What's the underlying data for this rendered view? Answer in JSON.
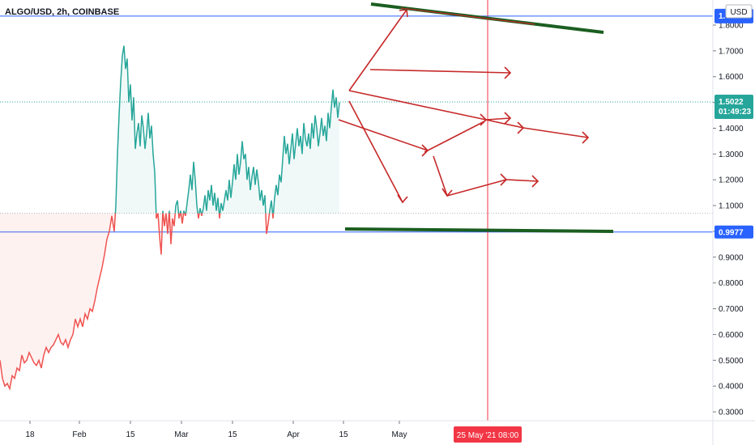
{
  "title": "ALGO/USD, 2h, COINBASE",
  "currency": "USD",
  "chart_data": {
    "type": "line",
    "symbol": "ALGO/USD",
    "interval": "2h",
    "exchange": "COINBASE",
    "y_ticks": [
      "1.8000",
      "1.7000",
      "1.6000",
      "1.5000",
      "1.4000",
      "1.3000",
      "1.2000",
      "1.1000",
      "1.0000",
      "0.9000",
      "0.8000",
      "0.7000",
      "0.6000",
      "0.5000",
      "0.4000",
      "0.3000"
    ],
    "x_ticks": [
      "18",
      "Feb",
      "15",
      "Mar",
      "15",
      "Apr",
      "15",
      "May"
    ],
    "ylim": [
      0.28,
      1.86
    ],
    "last_price": "1.5022",
    "countdown": "01:49:23",
    "marker_price": "0.9977",
    "marker_label_top": "1.",
    "crosshair_label": "25 May '21   08:00",
    "baseline_value": 1.07,
    "series": [
      {
        "points": [
          [
            0,
            0.5
          ],
          [
            3,
            0.43
          ],
          [
            6,
            0.4
          ],
          [
            9,
            0.41
          ],
          [
            12,
            0.39
          ],
          [
            15,
            0.44
          ],
          [
            18,
            0.43
          ],
          [
            21,
            0.47
          ],
          [
            24,
            0.46
          ],
          [
            27,
            0.52
          ],
          [
            30,
            0.49
          ],
          [
            33,
            0.5
          ],
          [
            36,
            0.53
          ],
          [
            39,
            0.51
          ],
          [
            42,
            0.49
          ],
          [
            45,
            0.48
          ],
          [
            48,
            0.5
          ],
          [
            51,
            0.47
          ],
          [
            54,
            0.52
          ],
          [
            57,
            0.55
          ],
          [
            60,
            0.53
          ],
          [
            63,
            0.55
          ],
          [
            66,
            0.56
          ],
          [
            69,
            0.58
          ],
          [
            72,
            0.6
          ],
          [
            75,
            0.57
          ],
          [
            78,
            0.56
          ],
          [
            81,
            0.58
          ],
          [
            84,
            0.55
          ],
          [
            87,
            0.58
          ],
          [
            90,
            0.6
          ],
          [
            93,
            0.66
          ],
          [
            96,
            0.63
          ],
          [
            99,
            0.66
          ],
          [
            102,
            0.63
          ],
          [
            105,
            0.68
          ],
          [
            108,
            0.66
          ],
          [
            111,
            0.7
          ],
          [
            114,
            0.69
          ],
          [
            117,
            0.73
          ],
          [
            120,
            0.78
          ],
          [
            123,
            0.82
          ],
          [
            126,
            0.86
          ],
          [
            129,
            0.91
          ],
          [
            132,
            0.97
          ],
          [
            135,
            1.0
          ],
          [
            138,
            1.06
          ],
          [
            141,
            1.0
          ],
          [
            143,
            1.1
          ],
          [
            145,
            1.3
          ],
          [
            147,
            1.45
          ],
          [
            149,
            1.58
          ],
          [
            151,
            1.68
          ],
          [
            153,
            1.72
          ],
          [
            155,
            1.63
          ],
          [
            157,
            1.67
          ],
          [
            159,
            1.5
          ],
          [
            161,
            1.57
          ],
          [
            163,
            1.43
          ],
          [
            165,
            1.52
          ],
          [
            167,
            1.32
          ],
          [
            169,
            1.38
          ],
          [
            171,
            1.42
          ],
          [
            173,
            1.33
          ],
          [
            175,
            1.45
          ],
          [
            177,
            1.4
          ],
          [
            179,
            1.32
          ],
          [
            181,
            1.38
          ],
          [
            183,
            1.46
          ],
          [
            185,
            1.36
          ],
          [
            187,
            1.41
          ],
          [
            189,
            1.3
          ],
          [
            191,
            1.23
          ],
          [
            193,
            1.05
          ],
          [
            195,
            1.07
          ],
          [
            197,
            0.98
          ],
          [
            199,
            0.91
          ],
          [
            201,
            1.08
          ],
          [
            203,
            1.02
          ],
          [
            205,
            1.07
          ],
          [
            207,
            0.99
          ],
          [
            209,
            1.08
          ],
          [
            211,
            0.95
          ],
          [
            213,
            1.05
          ],
          [
            215,
            1.02
          ],
          [
            217,
            1.1
          ],
          [
            219,
            1.12
          ],
          [
            221,
            1.05
          ],
          [
            223,
            1.08
          ],
          [
            225,
            1.03
          ],
          [
            227,
            1.08
          ],
          [
            229,
            1.06
          ],
          [
            231,
            1.11
          ],
          [
            233,
            1.16
          ],
          [
            235,
            1.22
          ],
          [
            237,
            1.16
          ],
          [
            239,
            1.27
          ],
          [
            241,
            1.2
          ],
          [
            243,
            1.1
          ],
          [
            245,
            1.05
          ],
          [
            247,
            1.09
          ],
          [
            249,
            1.06
          ],
          [
            251,
            1.09
          ],
          [
            253,
            1.14
          ],
          [
            255,
            1.08
          ],
          [
            257,
            1.16
          ],
          [
            259,
            1.12
          ],
          [
            261,
            1.18
          ],
          [
            263,
            1.1
          ],
          [
            265,
            1.15
          ],
          [
            267,
            1.08
          ],
          [
            269,
            1.13
          ],
          [
            271,
            1.05
          ],
          [
            273,
            1.11
          ],
          [
            275,
            1.08
          ],
          [
            277,
            1.12
          ],
          [
            279,
            1.16
          ],
          [
            281,
            1.12
          ],
          [
            283,
            1.2
          ],
          [
            285,
            1.13
          ],
          [
            287,
            1.19
          ],
          [
            289,
            1.26
          ],
          [
            291,
            1.2
          ],
          [
            293,
            1.3
          ],
          [
            295,
            1.22
          ],
          [
            297,
            1.27
          ],
          [
            299,
            1.35
          ],
          [
            301,
            1.28
          ],
          [
            303,
            1.3
          ],
          [
            305,
            1.2
          ],
          [
            307,
            1.25
          ],
          [
            309,
            1.16
          ],
          [
            311,
            1.21
          ],
          [
            313,
            1.25
          ],
          [
            315,
            1.18
          ],
          [
            317,
            1.24
          ],
          [
            319,
            1.19
          ],
          [
            321,
            1.12
          ],
          [
            323,
            1.16
          ],
          [
            325,
            1.1
          ],
          [
            327,
            1.14
          ],
          [
            329,
            0.99
          ],
          [
            331,
            1.03
          ],
          [
            333,
            1.08
          ],
          [
            335,
            1.12
          ],
          [
            337,
            1.05
          ],
          [
            339,
            1.13
          ],
          [
            341,
            1.18
          ],
          [
            343,
            1.14
          ],
          [
            345,
            1.22
          ],
          [
            347,
            1.19
          ],
          [
            349,
            1.28
          ],
          [
            351,
            1.37
          ],
          [
            353,
            1.3
          ],
          [
            355,
            1.34
          ],
          [
            357,
            1.26
          ],
          [
            359,
            1.32
          ],
          [
            361,
            1.38
          ],
          [
            363,
            1.28
          ],
          [
            365,
            1.34
          ],
          [
            367,
            1.4
          ],
          [
            369,
            1.33
          ],
          [
            371,
            1.37
          ],
          [
            373,
            1.3
          ],
          [
            375,
            1.42
          ],
          [
            377,
            1.36
          ],
          [
            379,
            1.33
          ],
          [
            381,
            1.38
          ],
          [
            383,
            1.32
          ],
          [
            385,
            1.42
          ],
          [
            387,
            1.36
          ],
          [
            389,
            1.45
          ],
          [
            391,
            1.4
          ],
          [
            393,
            1.33
          ],
          [
            395,
            1.38
          ],
          [
            397,
            1.44
          ],
          [
            399,
            1.37
          ],
          [
            401,
            1.41
          ],
          [
            403,
            1.35
          ],
          [
            405,
            1.46
          ],
          [
            407,
            1.4
          ],
          [
            409,
            1.48
          ],
          [
            411,
            1.55
          ],
          [
            413,
            1.48
          ],
          [
            415,
            1.52
          ],
          [
            417,
            1.44
          ],
          [
            419,
            1.5
          ]
        ]
      }
    ],
    "horizontal_lines": [
      1.835,
      1.502,
      0.9977
    ],
    "colors": {
      "up": "#26a69a",
      "down": "#ef5350",
      "fill_up": "#26a69a",
      "fill_down": "#ef5350",
      "drawing_red": "#c62828",
      "drawing_green": "#1b5e20",
      "hline": "#2962ff",
      "crosshair": "#f23645",
      "dotted_price": "#26a69a",
      "label_blue": "#2962ff",
      "label_red": "#f23645",
      "label_green": "#26a69a"
    }
  }
}
